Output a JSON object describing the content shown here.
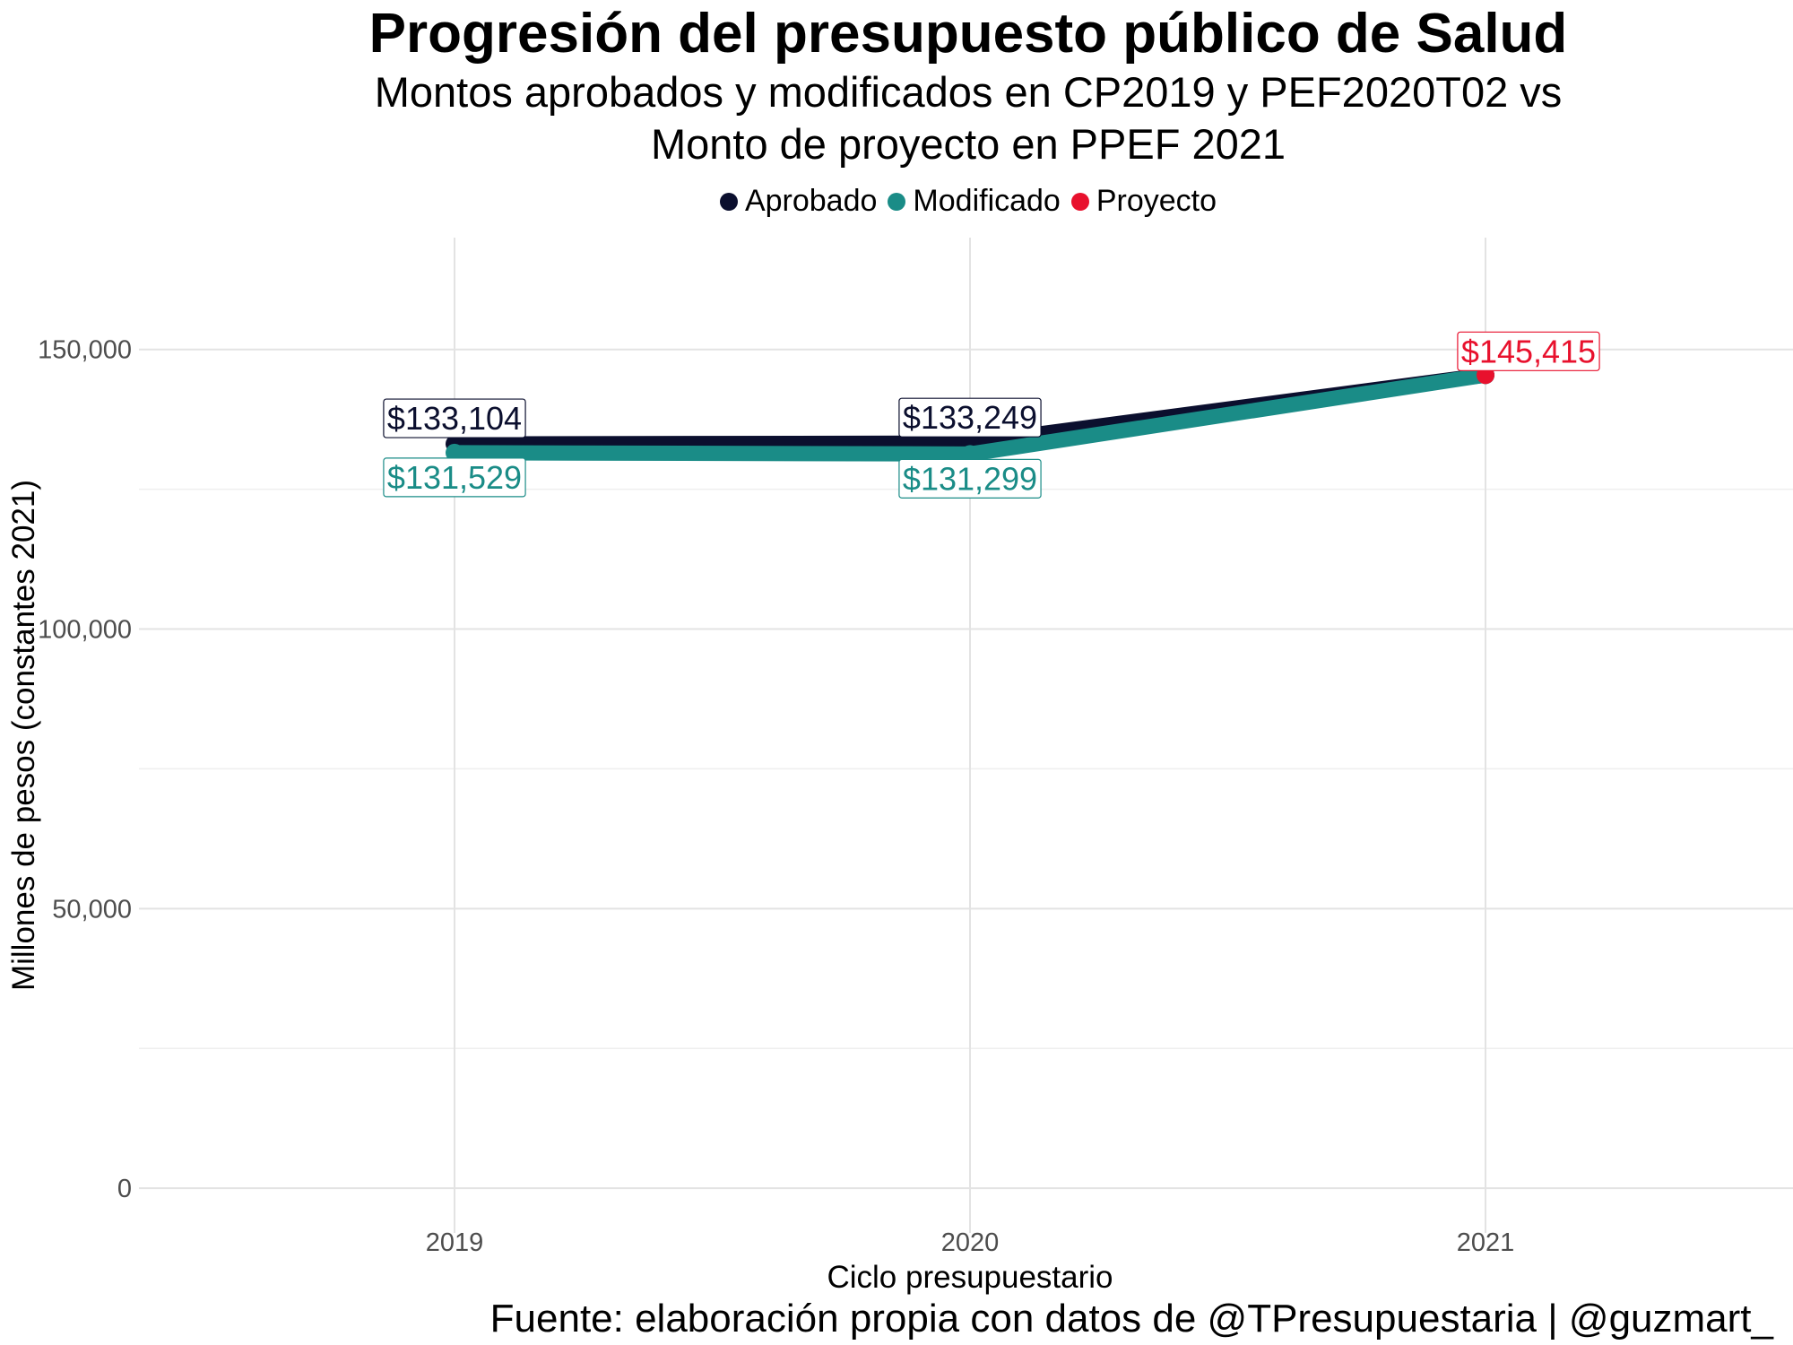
{
  "chart_data": {
    "type": "line",
    "title": "Progresión del presupuesto público de Salud",
    "subtitle_line1": "Montos aprobados y modificados en CP2019 y PEF2020T02 vs",
    "subtitle_line2": "Monto de proyecto en PPEF 2021",
    "xlabel": "Ciclo presupuestario",
    "ylabel": "Millones de pesos (constantes 2021)",
    "caption": "Fuente: elaboración propia con datos de @TPresupuestaria | @guzmart_",
    "categories": [
      "2019",
      "2020",
      "2021"
    ],
    "ylim": [
      -8000,
      170000
    ],
    "yticks": [
      0,
      50000,
      100000,
      150000
    ],
    "ytick_labels": [
      "0",
      "50,000",
      "100,000",
      "150,000"
    ],
    "grid": true,
    "legend_position": "top",
    "legend": [
      {
        "name": "Aprobado",
        "color": "#0b0f2e"
      },
      {
        "name": "Modificado",
        "color": "#1a8c87"
      },
      {
        "name": "Proyecto",
        "color": "#e8112d"
      }
    ],
    "series": [
      {
        "name": "Aprobado",
        "color": "#0b0f2e",
        "values": [
          133104,
          133249,
          145415
        ],
        "labels": [
          "$133,104",
          "$133,249",
          null
        ]
      },
      {
        "name": "Modificado",
        "color": "#1a8c87",
        "values": [
          131529,
          131299,
          145415
        ],
        "labels": [
          "$131,529",
          "$131,299",
          null
        ]
      },
      {
        "name": "Proyecto",
        "color": "#e8112d",
        "values": [
          null,
          null,
          145415
        ],
        "labels": [
          null,
          null,
          "$145,415"
        ]
      }
    ]
  }
}
